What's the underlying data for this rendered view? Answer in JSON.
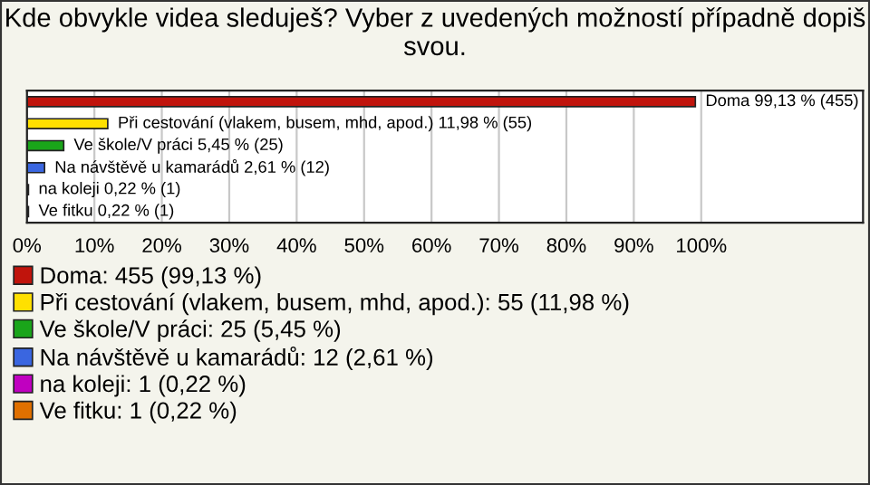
{
  "chart_data": {
    "type": "bar",
    "orientation": "horizontal",
    "title": "Kde obvykle videa sleduješ? Vyber z uvedených možností případně dopiš svou.",
    "categories": [
      null,
      null,
      null,
      null,
      null,
      null
    ],
    "series": [
      {
        "name": "Doma: 455 (99,13 %)",
        "color": "#c0140c",
        "values": [
          99.13,
          null,
          null,
          null,
          null,
          null
        ],
        "value_labels": [
          "Doma 99,13 % (455)",
          null,
          null,
          null,
          null,
          null
        ]
      },
      {
        "name": "Při cestování (vlakem, busem, mhd, apod.): 55 (11,98 %)",
        "color": "#ffe000",
        "values": [
          null,
          11.98,
          null,
          null,
          null,
          null
        ],
        "value_labels": [
          null,
          "Při cestování (vlakem, busem, mhd, apod.) 11,98 % (55)",
          null,
          null,
          null,
          null
        ]
      },
      {
        "name": "Ve škole/V práci: 25 (5,45 %)",
        "color": "#1aa51a",
        "values": [
          null,
          null,
          5.45,
          null,
          null,
          null
        ],
        "value_labels": [
          null,
          null,
          "Ve škole/V práci 5,45 % (25)",
          null,
          null,
          null
        ]
      },
      {
        "name": "Na návštěvě u kamarádů: 12 (2,61 %)",
        "color": "#3a66e0",
        "values": [
          null,
          null,
          null,
          2.61,
          null,
          null
        ],
        "value_labels": [
          null,
          null,
          null,
          "Na návštěvě u kamarádů 2,61 % (12)",
          null,
          null
        ]
      },
      {
        "name": "na koleji: 1 (0,22 %)",
        "color": "#c000c0",
        "values": [
          null,
          null,
          null,
          null,
          0.22,
          null
        ],
        "value_labels": [
          null,
          null,
          null,
          null,
          "na koleji 0,22 % (1)",
          null
        ]
      },
      {
        "name": "Ve fitku: 1 (0,22 %)",
        "color": "#e07000",
        "values": [
          null,
          null,
          null,
          null,
          null,
          0.22
        ],
        "value_labels": [
          null,
          null,
          null,
          null,
          null,
          "Ve fitku 0,22 % (1)"
        ]
      }
    ],
    "xlim": [
      0,
      124
    ],
    "xticks": [
      {
        "value": 0,
        "label": "0%"
      },
      {
        "value": 10,
        "label": "10%"
      },
      {
        "value": 20,
        "label": "20%"
      },
      {
        "value": 30,
        "label": "30%"
      },
      {
        "value": 40,
        "label": "40%"
      },
      {
        "value": 50,
        "label": "50%"
      },
      {
        "value": 60,
        "label": "60%"
      },
      {
        "value": 70,
        "label": "70%"
      },
      {
        "value": 80,
        "label": "80%"
      },
      {
        "value": 90,
        "label": "90%"
      },
      {
        "value": 100,
        "label": "100%"
      }
    ],
    "grid": "x",
    "legend": "bottom"
  }
}
